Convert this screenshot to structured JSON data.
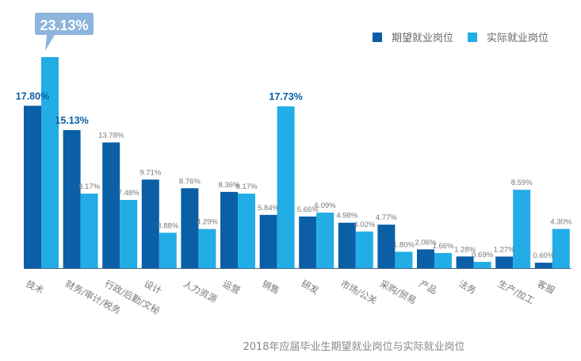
{
  "chart_data": {
    "type": "bar",
    "title": "2018年应届毕业生期望就业岗位与实际就业岗位",
    "xlabel": "",
    "ylabel": "",
    "ylim": [
      0,
      24
    ],
    "grid": false,
    "legend_position": "top-right",
    "categories": [
      "技术",
      "财务/审计/税务",
      "行政/后勤/文秘",
      "设计",
      "人力资源",
      "运营",
      "销售",
      "研发",
      "市场/公关",
      "采购/贸易",
      "产品",
      "法务",
      "生产/加工",
      "客服"
    ],
    "series": [
      {
        "name": "期望就业岗位",
        "color": "#0a5fa6",
        "values": [
          17.8,
          15.13,
          13.78,
          9.71,
          8.76,
          8.36,
          5.84,
          5.66,
          4.98,
          4.77,
          2.06,
          1.28,
          1.27,
          0.6
        ],
        "labels": [
          "17.80%",
          "15.13%",
          "13.78%",
          "9.71%",
          "8.76%",
          "8.36%",
          "5.84%",
          "5.66%",
          "4.98%",
          "4.77%",
          "2.06%",
          "1.28%",
          "1.27%",
          "0.60%"
        ]
      },
      {
        "name": "实际就业岗位",
        "color": "#22ade6",
        "values": [
          23.13,
          8.17,
          7.48,
          3.88,
          4.29,
          8.17,
          17.73,
          6.09,
          4.02,
          1.8,
          1.66,
          0.69,
          8.59,
          4.3
        ],
        "labels": [
          "23.13%",
          "8.17%",
          "7.48%",
          "3.88%",
          "4.29%",
          "8.17%",
          "17.73%",
          "6.09%",
          "4.02%",
          "1.80%",
          "1.66%",
          "0.69%",
          "8.59%",
          "4.30%"
        ]
      }
    ],
    "highlights": {
      "callout_color": "#8db4dc",
      "emphasis_color": "#0a5fa6"
    }
  }
}
